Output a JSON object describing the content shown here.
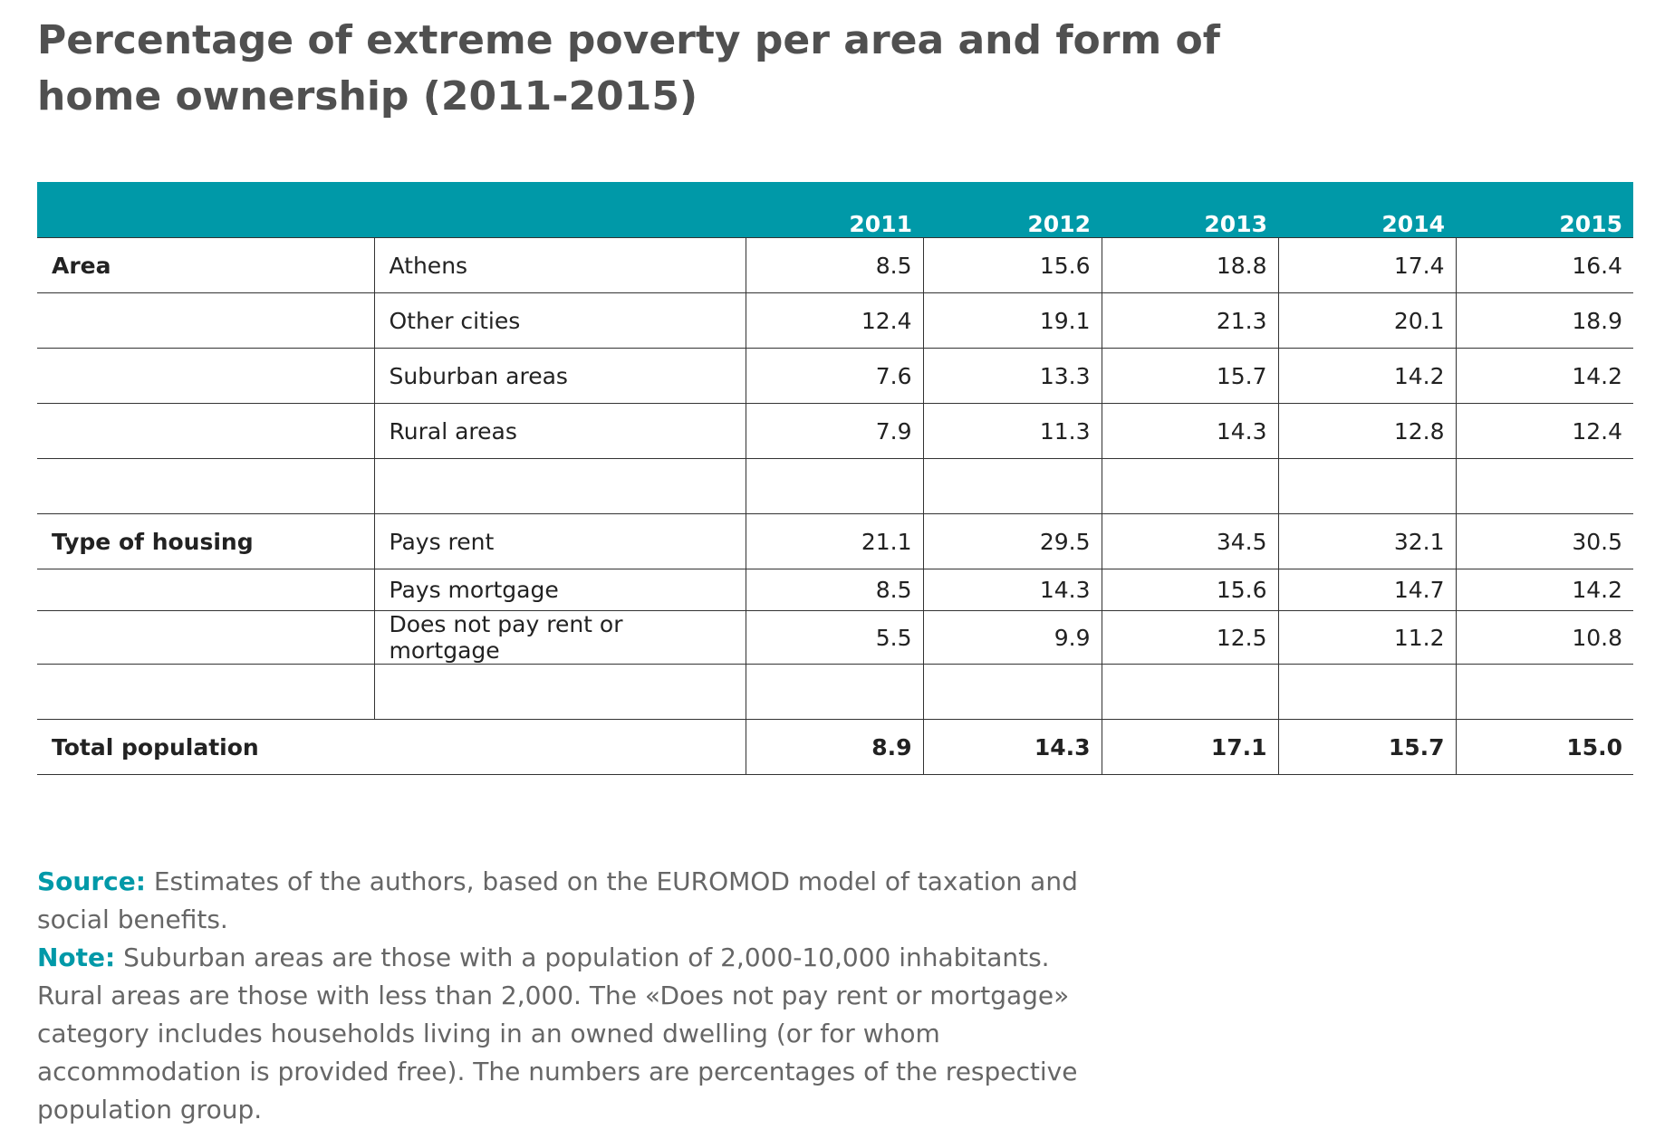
{
  "title": "Percentage of extreme poverty per area and form of home ownership (2011-2015)",
  "table": {
    "header": [
      "2011",
      "2012",
      "2013",
      "2014",
      "2015"
    ],
    "sections": [
      {
        "label": "Area",
        "rows": [
          {
            "label": "Athens",
            "values": [
              "8.5",
              "15.6",
              "18.8",
              "17.4",
              "16.4"
            ]
          },
          {
            "label": "Other cities",
            "values": [
              "12.4",
              "19.1",
              "21.3",
              "20.1",
              "18.9"
            ]
          },
          {
            "label": "Suburban areas",
            "values": [
              "7.6",
              "13.3",
              "15.7",
              "14.2",
              "14.2"
            ]
          },
          {
            "label": "Rural areas",
            "values": [
              "7.9",
              "11.3",
              "14.3",
              "12.8",
              "12.4"
            ]
          }
        ]
      },
      {
        "label": "Type of housing",
        "rows": [
          {
            "label": "Pays rent",
            "values": [
              "21.1",
              "29.5",
              "34.5",
              "32.1",
              "30.5"
            ]
          },
          {
            "label": "Pays mortgage",
            "values": [
              "8.5",
              "14.3",
              "15.6",
              "14.7",
              "14.2"
            ]
          },
          {
            "label": "Does not pay rent or mortgage",
            "values": [
              "5.5",
              "9.9",
              "12.5",
              "11.2",
              "10.8"
            ]
          }
        ]
      }
    ],
    "total": {
      "label": "Total population",
      "values": [
        "8.9",
        "14.3",
        "17.1",
        "15.7",
        "15.0"
      ]
    }
  },
  "source": {
    "label": "Source:",
    "text": "Estimates of the authors, based on the EUROMOD model of taxation and social benefits."
  },
  "note": {
    "label": "Note:",
    "text": "Suburban areas are those with a population of 2,000-10,000 inhabitants. Rural areas are those with less than 2,000. The «Does not pay rent or mortgage» category includes households living in an owned dwelling (or for whom accommodation is provided free). The numbers are percentages of the respective population group."
  }
}
